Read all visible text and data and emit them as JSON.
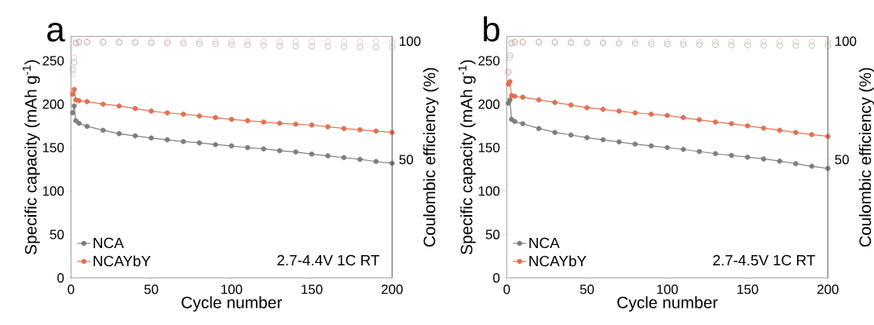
{
  "chart_data": [
    {
      "type": "line",
      "title": "a",
      "xlabel": "Cycle number",
      "ylabel": "Specific capacity (mAh g$^{-1}$)",
      "y2label": "Coulombic efficiency (%)",
      "annotations": [
        "2.7-4.4V 1C RT"
      ],
      "xlim": [
        0,
        200
      ],
      "xticks": [
        0,
        50,
        100,
        150,
        200
      ],
      "ylim": [
        0,
        278
      ],
      "yticks": [
        0,
        50,
        100,
        150,
        200,
        250
      ],
      "y2lim": [
        0,
        102
      ],
      "y2ticks": [
        50,
        100
      ],
      "legend": "bottom left",
      "marker": "circle",
      "series": [
        {
          "name": "NCA",
          "color": "#7f7f7f",
          "x": [
            1,
            2,
            3,
            5,
            10,
            20,
            30,
            40,
            50,
            60,
            70,
            80,
            90,
            100,
            110,
            120,
            130,
            140,
            150,
            160,
            170,
            180,
            190,
            200
          ],
          "values": [
            190,
            198,
            181,
            178,
            174.5,
            170,
            166,
            163.5,
            161,
            159,
            157,
            155.5,
            153.5,
            152,
            150,
            148.5,
            146.5,
            145,
            142.5,
            140.5,
            138.5,
            136.5,
            134,
            132
          ]
        },
        {
          "name": "NCAYbY",
          "color": "#e8704f",
          "x": [
            1,
            2,
            3,
            5,
            10,
            20,
            30,
            40,
            50,
            60,
            70,
            80,
            90,
            100,
            110,
            120,
            130,
            140,
            150,
            160,
            170,
            180,
            190,
            200
          ],
          "values": [
            211.5,
            217,
            205,
            204,
            203,
            200,
            198,
            195,
            192,
            190,
            188.5,
            186.5,
            184.5,
            182.5,
            181,
            179.5,
            178,
            177,
            176,
            174,
            172,
            170.5,
            169,
            167.5
          ]
        },
        {
          "type": "scatter",
          "axis": "y2",
          "color": "#8c8c8c",
          "x": [
            1,
            2,
            3,
            5,
            10,
            20,
            30,
            40,
            50,
            60,
            70,
            80,
            90,
            100,
            110,
            120,
            130,
            140,
            150,
            160,
            170,
            180,
            190,
            200
          ],
          "values": [
            88,
            91,
            99,
            99.5,
            99.5,
            99.5,
            99.4,
            99.3,
            99.2,
            99.1,
            99,
            98.9,
            98.8,
            98.6,
            98.4,
            98.2,
            98,
            97.9,
            97.8,
            97.7,
            97.6,
            97.5,
            97.5,
            97.4
          ]
        },
        {
          "type": "scatter",
          "axis": "y2",
          "color": "#e8a293",
          "x": [
            1,
            2,
            3,
            5,
            10,
            20,
            30,
            40,
            50,
            60,
            70,
            80,
            90,
            100,
            110,
            120,
            130,
            140,
            150,
            160,
            170,
            180,
            190,
            200
          ],
          "values": [
            86,
            93,
            99.5,
            99.8,
            99.8,
            99.8,
            99.8,
            99.8,
            99.8,
            99.8,
            99.8,
            99.8,
            99.8,
            99.8,
            99.8,
            99.8,
            99.8,
            99.8,
            99.8,
            99.8,
            99.8,
            99.8,
            99.8,
            99.8
          ]
        }
      ]
    },
    {
      "type": "line",
      "title": "b",
      "xlabel": "Cycle number",
      "ylabel": "Specific capacity (mAh g$^{-1}$)",
      "y2label": "Coulombic efficiency (%)",
      "annotations": [
        "2.7-4.5V 1C RT"
      ],
      "xlim": [
        0,
        200
      ],
      "xticks": [
        0,
        50,
        100,
        150,
        200
      ],
      "ylim": [
        0,
        278
      ],
      "yticks": [
        0,
        50,
        100,
        150,
        200,
        250
      ],
      "y2lim": [
        0,
        102
      ],
      "y2ticks": [
        50,
        100
      ],
      "legend": "bottom left",
      "marker": "circle",
      "series": [
        {
          "name": "NCA",
          "color": "#7f7f7f",
          "x": [
            1,
            2,
            3,
            5,
            10,
            20,
            30,
            40,
            50,
            60,
            70,
            80,
            90,
            100,
            110,
            120,
            130,
            140,
            150,
            160,
            170,
            180,
            190,
            200
          ],
          "values": [
            201,
            205,
            182.5,
            180,
            177.5,
            172,
            167.5,
            164.5,
            161.5,
            159,
            156.5,
            154,
            152,
            150,
            148,
            145.5,
            143,
            141,
            139,
            137,
            134.5,
            131.5,
            128.5,
            126
          ]
        },
        {
          "name": "NCAYbY",
          "color": "#e8704f",
          "x": [
            1,
            2,
            3,
            5,
            10,
            20,
            30,
            40,
            50,
            60,
            70,
            80,
            90,
            100,
            110,
            120,
            130,
            140,
            150,
            160,
            170,
            180,
            190,
            200
          ],
          "values": [
            223,
            226,
            210,
            209,
            208,
            205,
            202,
            199,
            196,
            194,
            192,
            190,
            188.5,
            187,
            184.5,
            182,
            179.5,
            177.5,
            175,
            172.5,
            170,
            167.5,
            165,
            163
          ]
        },
        {
          "type": "scatter",
          "axis": "y2",
          "color": "#8c8c8c",
          "x": [
            1,
            2,
            3,
            5,
            10,
            20,
            30,
            40,
            50,
            60,
            70,
            80,
            90,
            100,
            110,
            120,
            130,
            140,
            150,
            160,
            170,
            180,
            190,
            200
          ],
          "values": [
            87,
            94,
            99,
            99.5,
            99.5,
            99.5,
            99.4,
            99.3,
            99.2,
            99.1,
            99,
            98.9,
            98.8,
            98.7,
            98.6,
            98.5,
            98.4,
            98.3,
            98.3,
            98.2,
            98.2,
            98.1,
            98.1,
            98
          ]
        },
        {
          "type": "scatter",
          "axis": "y2",
          "color": "#e8a293",
          "x": [
            1,
            2,
            3,
            5,
            10,
            20,
            30,
            40,
            50,
            60,
            70,
            80,
            90,
            100,
            110,
            120,
            130,
            140,
            150,
            160,
            170,
            180,
            190,
            200
          ],
          "values": [
            86.7,
            93,
            99.5,
            99.8,
            99.8,
            99.8,
            99.8,
            99.8,
            99.8,
            99.8,
            99.8,
            99.8,
            99.8,
            99.8,
            99.8,
            99.8,
            99.8,
            99.8,
            99.8,
            99.8,
            99.8,
            99.8,
            99.8,
            99.8
          ]
        }
      ]
    }
  ]
}
